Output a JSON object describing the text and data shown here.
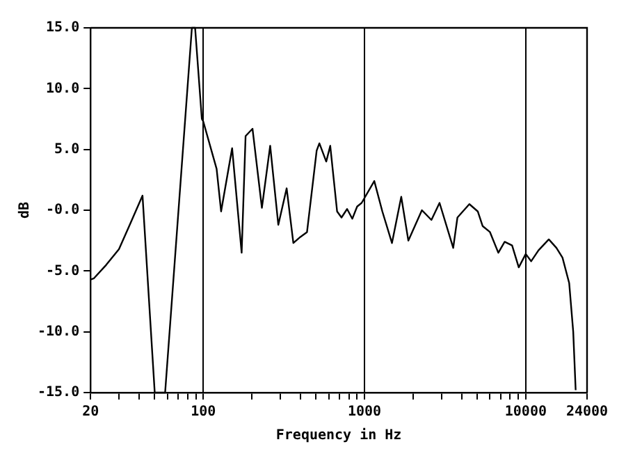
{
  "chart_data": {
    "type": "line",
    "xlabel": "Frequency in Hz",
    "ylabel": "dB",
    "log": "x",
    "grid": "x",
    "marker": "none",
    "line_style": "solid",
    "legend": false,
    "xlim": [
      20,
      24000
    ],
    "ylim": [
      -15,
      15
    ],
    "xticks": [
      20,
      {
        "value": 30,
        "label": null
      },
      {
        "value": 40,
        "label": null
      },
      {
        "value": 50,
        "label": null
      },
      {
        "value": 60,
        "label": null
      },
      {
        "value": 70,
        "label": null
      },
      {
        "value": 80,
        "label": null
      },
      {
        "value": 90,
        "label": null
      },
      100,
      {
        "value": 200,
        "label": null
      },
      {
        "value": 300,
        "label": null
      },
      {
        "value": 400,
        "label": null
      },
      {
        "value": 500,
        "label": null
      },
      {
        "value": 600,
        "label": null
      },
      {
        "value": 700,
        "label": null
      },
      {
        "value": 800,
        "label": null
      },
      {
        "value": 900,
        "label": null
      },
      1000,
      {
        "value": 2000,
        "label": null
      },
      {
        "value": 3000,
        "label": null
      },
      {
        "value": 4000,
        "label": null
      },
      {
        "value": 5000,
        "label": null
      },
      {
        "value": 6000,
        "label": null
      },
      {
        "value": 7000,
        "label": null
      },
      {
        "value": 8000,
        "label": null
      },
      {
        "value": 9000,
        "label": null
      },
      10000,
      24000
    ],
    "yticks": [
      {
        "value": 15,
        "label": "15.0"
      },
      {
        "value": 10,
        "label": "10.0"
      },
      {
        "value": 5,
        "label": "5.0"
      },
      {
        "value": 0,
        "label": "-0.0"
      },
      {
        "value": -5,
        "label": "-5.0"
      },
      {
        "value": -10,
        "label": "-10.0"
      },
      {
        "value": -15,
        "label": "-15.0"
      }
    ],
    "series": [
      {
        "color": "#000000",
        "x": [
          20,
          21,
          25,
          30,
          35,
          42,
          50,
          58,
          85,
          89,
          98,
          100,
          121,
          129,
          151,
          173,
          183,
          202,
          231,
          260,
          292,
          329,
          362,
          400,
          440,
          505,
          525,
          579,
          613,
          676,
          720,
          780,
          840,
          900,
          960,
          1150,
          1290,
          1480,
          1690,
          1870,
          2270,
          2600,
          2920,
          3550,
          3770,
          4470,
          5040,
          5400,
          6000,
          6760,
          7400,
          8230,
          9050,
          10000,
          10800,
          12000,
          13900,
          15500,
          16900,
          18600,
          19700,
          20400
        ],
        "values": [
          -5.7,
          -5.6,
          -4.5,
          -3.2,
          -1.2,
          1.2,
          -15,
          -15,
          15,
          15,
          7.5,
          7.3,
          3.4,
          -0.1,
          5.1,
          -3.5,
          6.1,
          6.7,
          0.2,
          5.3,
          -1.2,
          1.8,
          -2.7,
          -2.2,
          -1.8,
          4.9,
          5.5,
          4.0,
          5.3,
          -0.1,
          -0.6,
          0.1,
          -0.7,
          0.3,
          0.6,
          2.4,
          -0.1,
          -2.7,
          1.1,
          -2.5,
          0.0,
          -0.8,
          0.6,
          -3.1,
          -0.6,
          0.5,
          -0.1,
          -1.3,
          -1.8,
          -3.5,
          -2.6,
          -2.9,
          -4.7,
          -3.6,
          -4.2,
          -3.3,
          -2.4,
          -3.1,
          -3.9,
          -6.0,
          -10.0,
          -14.8
        ]
      }
    ]
  }
}
